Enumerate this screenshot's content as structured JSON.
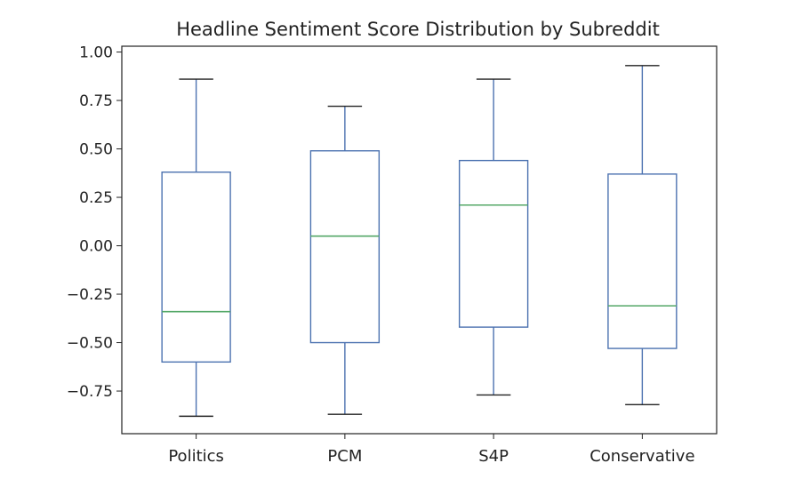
{
  "chart_data": {
    "type": "box",
    "title": "Headline Sentiment Score Distribution by Subreddit",
    "xlabel": "",
    "ylabel": "",
    "ylim": [
      -0.97,
      1.03
    ],
    "yticks": [
      1.0,
      0.75,
      0.5,
      0.25,
      0.0,
      -0.25,
      -0.5,
      -0.75
    ],
    "ytick_labels": [
      "1.00",
      "0.75",
      "0.50",
      "0.25",
      "0.00",
      "−0.25",
      "−0.50",
      "−0.75"
    ],
    "grid": false,
    "categories": [
      "Politics",
      "PCM",
      "S4P",
      "Conservative"
    ],
    "boxes": [
      {
        "label": "Politics",
        "whisker_low": -0.88,
        "q1": -0.6,
        "median": -0.34,
        "q3": 0.38,
        "whisker_high": 0.86
      },
      {
        "label": "PCM",
        "whisker_low": -0.87,
        "q1": -0.5,
        "median": 0.05,
        "q3": 0.49,
        "whisker_high": 0.72
      },
      {
        "label": "S4P",
        "whisker_low": -0.77,
        "q1": -0.42,
        "median": 0.21,
        "q3": 0.44,
        "whisker_high": 0.86
      },
      {
        "label": "Conservative",
        "whisker_low": -0.82,
        "q1": -0.53,
        "median": -0.31,
        "q3": 0.37,
        "whisker_high": 0.93
      }
    ],
    "colors": {
      "box": "#4c72b0",
      "median": "#55a868",
      "axis": "#222222"
    }
  }
}
